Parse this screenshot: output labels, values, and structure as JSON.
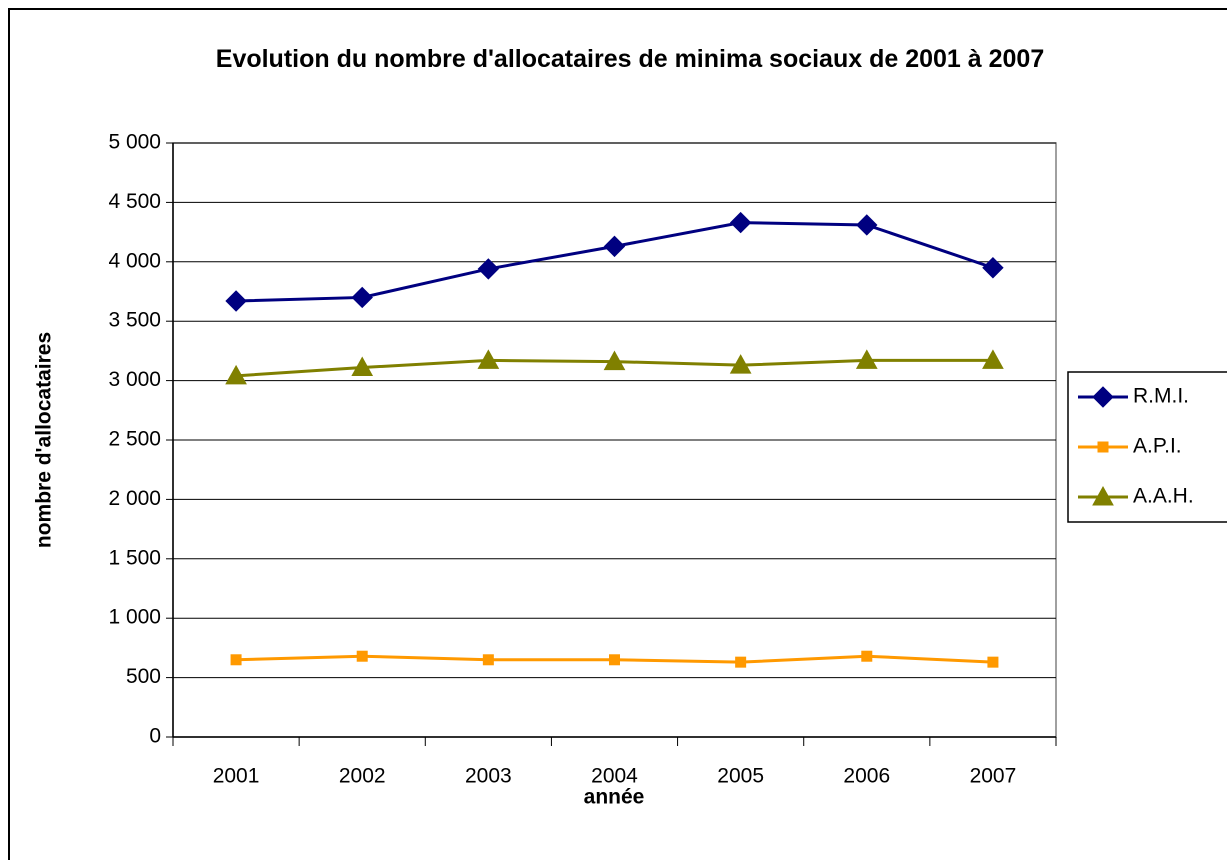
{
  "chart_data": {
    "type": "line",
    "title": "Evolution du nombre d'allocataires de minima sociaux de 2001 à 2007",
    "x_label": "année",
    "y_label": "nombre d'allocataires",
    "categories": [
      "2001",
      "2002",
      "2003",
      "2004",
      "2005",
      "2006",
      "2007"
    ],
    "series": [
      {
        "name": "R.M.I.",
        "color": "#000080",
        "marker": "diamond",
        "values": [
          3670,
          3700,
          3940,
          4130,
          4330,
          4310,
          3950
        ]
      },
      {
        "name": "A.P.I.",
        "color": "#ff9900",
        "marker": "square",
        "values": [
          650,
          680,
          650,
          650,
          630,
          680,
          630
        ]
      },
      {
        "name": "A.A.H.",
        "color": "#808000",
        "marker": "triangle",
        "values": [
          3040,
          3110,
          3170,
          3160,
          3130,
          3170,
          3170
        ]
      }
    ],
    "ylim": [
      0,
      5000
    ],
    "yticks": [
      0,
      500,
      {
        "value": 1000,
        "label": "1 000"
      },
      {
        "value": 1500,
        "label": "1 500"
      },
      {
        "value": 2000,
        "label": "2 000"
      },
      {
        "value": 2500,
        "label": "2 500"
      },
      {
        "value": 3000,
        "label": "3 000"
      },
      {
        "value": 3500,
        "label": "3 500"
      },
      {
        "value": 4000,
        "label": "4 000"
      },
      {
        "value": 4500,
        "label": "4 500"
      },
      {
        "value": 5000,
        "label": "5 000"
      }
    ],
    "grid": true,
    "legend": "right"
  }
}
